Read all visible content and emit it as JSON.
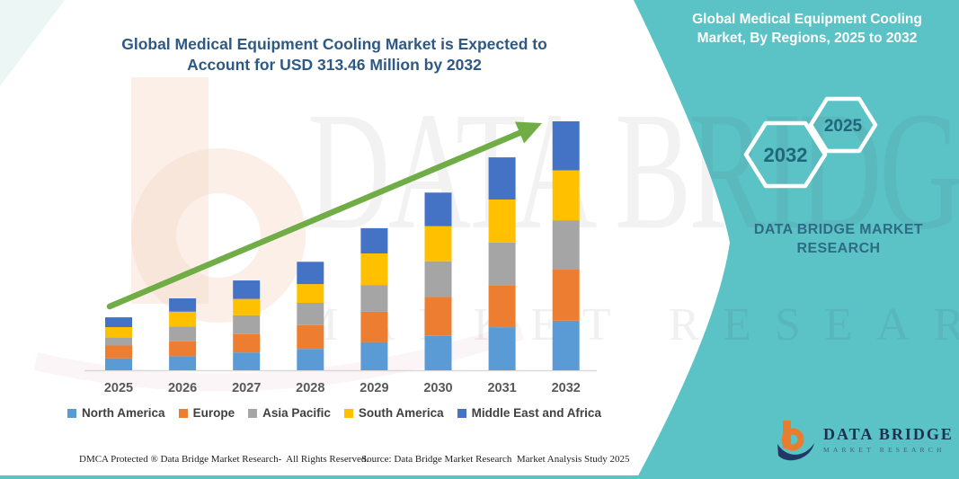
{
  "left_section": {
    "title_line1": "Global Medical Equipment Cooling Market is Expected to",
    "title_line2": "Account for USD 313.46 Million by 2032",
    "footer": {
      "dmca": "DMCA Protected ® Data Bridge Market Research-  All Rights Reserved.",
      "source": "Source: Data Bridge Market Research  Market Analysis Study 2025"
    }
  },
  "right_panel": {
    "background_color": "#5BC2C6",
    "title_line1": "Global Medical Equipment Cooling",
    "title_line2": "Market, By Regions, 2025 to 2032",
    "hexagons": [
      {
        "label": "2032"
      },
      {
        "label": "2025"
      }
    ],
    "brand_line1": "DATA BRIDGE MARKET",
    "brand_line2": "RESEARCH",
    "logo": {
      "name": "DATA BRIDGE",
      "subtitle": "MARKET RESEARCH"
    }
  },
  "watermark": {
    "line1": "DATA BRIDGE",
    "line2": "MARKET RESEARCH"
  },
  "chart_data": {
    "type": "bar",
    "stacked": true,
    "title": "Global Medical Equipment Cooling Market is Expected to Account for USD 313.46 Million by 2032",
    "unit": "USD Million",
    "categories": [
      "2025",
      "2026",
      "2027",
      "2028",
      "2029",
      "2030",
      "2031",
      "2032"
    ],
    "series": [
      {
        "name": "North America",
        "color": "#5B9BD5",
        "values": [
          15.0,
          17.6,
          22.4,
          26.9,
          35.5,
          43.8,
          54.2,
          62.5
        ]
      },
      {
        "name": "Europe",
        "color": "#ED7D31",
        "values": [
          16.1,
          18.7,
          23.2,
          29.9,
          38.2,
          48.6,
          53.1,
          64.7
        ]
      },
      {
        "name": "Asia Pacific",
        "color": "#A5A5A5",
        "values": [
          10.1,
          18.7,
          23.6,
          28.1,
          33.7,
          44.9,
          53.5,
          61.7
        ]
      },
      {
        "name": "South America",
        "color": "#FFC000",
        "values": [
          13.1,
          18.7,
          20.6,
          23.6,
          39.7,
          44.1,
          54.2,
          62.9
        ]
      },
      {
        "name": "Middle East and Africa",
        "color": "#4472C4",
        "values": [
          12.3,
          16.8,
          23.2,
          28.1,
          31.8,
          42.3,
          53.1,
          61.66
        ]
      }
    ],
    "estimated_totals": [
      66.6,
      90.5,
      113.0,
      136.6,
      178.9,
      223.7,
      268.1,
      313.46
    ],
    "stated_final_total": 313.46,
    "ylim": [
      0,
      320
    ],
    "grid": false,
    "y_axis_visible": false,
    "legend_position": "bottom",
    "trend_arrow": true,
    "arrow_color": "#70AD47",
    "axis_label_color": "#595959"
  }
}
